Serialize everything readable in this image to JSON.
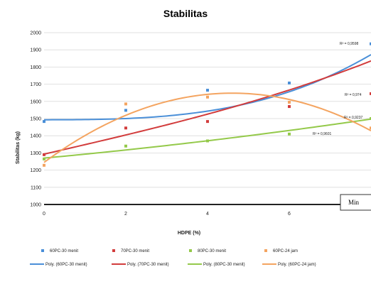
{
  "chart_data": {
    "type": "scatter",
    "title": "Stabilitas",
    "xlabel": "HDPE (%)",
    "ylabel": "Stabilitas (kg)",
    "xlim": [
      0,
      8
    ],
    "ylim": [
      1000,
      2000
    ],
    "x_ticks": [
      "0",
      "2",
      "4",
      "6"
    ],
    "y_ticks": [
      "1000",
      "1100",
      "1200",
      "1300",
      "1400",
      "1500",
      "1600",
      "1700",
      "1800",
      "1900",
      "2000"
    ],
    "grid": "horizontal",
    "legend_position": "bottom",
    "series": [
      {
        "name": "60PC-30 menit",
        "color": "#4a8fd8",
        "points": [
          [
            0,
            1483
          ],
          [
            2,
            1548
          ],
          [
            4,
            1665
          ],
          [
            6,
            1707
          ],
          [
            8,
            1935
          ]
        ],
        "trend_name": "Poly. (60PC-30 menit)",
        "trend": [
          1493,
          0.2,
          0.3,
          0.7
        ],
        "r2": "R² = 0,9598"
      },
      {
        "name": "70PC-30 menit",
        "color": "#d23c3c",
        "points": [
          [
            0,
            1290
          ],
          [
            2,
            1445
          ],
          [
            4,
            1483
          ],
          [
            6,
            1570
          ],
          [
            8,
            1645
          ]
        ],
        "trend_name": "Poly. (70PC-30 menit)",
        "trend": [
          1293,
          55,
          0,
          0.2
        ],
        "r2": "R² = 0,974"
      },
      {
        "name": "80PC-30 menit",
        "color": "#94c94a",
        "points": [
          [
            0,
            1265
          ],
          [
            2,
            1340
          ],
          [
            4,
            1370
          ],
          [
            6,
            1410
          ],
          [
            8,
            1500
          ]
        ],
        "trend_name": "Poly. (80PC-30 menit)",
        "trend": [
          1270,
          22,
          0.8,
          0
        ],
        "r2": "R² = 0,9237"
      },
      {
        "name": "60PC-24 jam",
        "color": "#f4a460",
        "points": [
          [
            0,
            1228
          ],
          [
            2,
            1585
          ],
          [
            4,
            1625
          ],
          [
            6,
            1595
          ],
          [
            8,
            1445
          ]
        ],
        "trend_name": "Poly. (60PC-24 jam)",
        "trend": [
          1245,
          175,
          -19,
          0
        ],
        "r2": "R² = 0,9601"
      }
    ],
    "annotation_box": "Min"
  }
}
